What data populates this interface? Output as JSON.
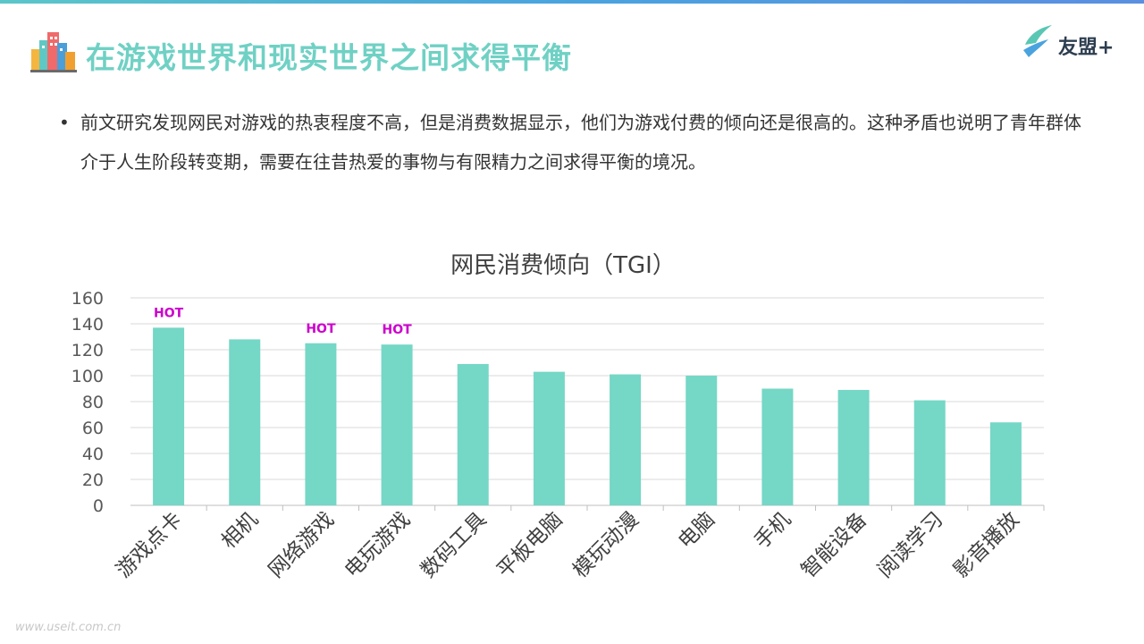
{
  "page": {
    "title": "在游戏世界和现实世界之间求得平衡",
    "bullet": "前文研究发现网民对游戏的热衷程度不高，但是消费数据显示，他们为游戏付费的倾向还是很高的。这种矛盾也说明了青年群体介于人生阶段转变期，需要在往昔热爱的事物与有限精力之间求得平衡的境况。",
    "watermark": "www.useit.com.cn"
  },
  "logo": {
    "text": "友盟+",
    "icon": "bird-icon"
  },
  "colors": {
    "accent": "#6fd1c4",
    "bar": "#75d7c6",
    "hot": "#cc00cc"
  },
  "chart_data": {
    "type": "bar",
    "title": "网民消费倾向（TGI）",
    "categories": [
      "游戏点卡",
      "相机",
      "网络游戏",
      "电玩游戏",
      "数码工具",
      "平板电脑",
      "模玩动漫",
      "电脑",
      "手机",
      "智能设备",
      "阅读学习",
      "影音播放"
    ],
    "values": [
      137,
      128,
      125,
      124,
      109,
      103,
      101,
      100,
      90,
      89,
      81,
      64
    ],
    "annotations": [
      "HOT",
      "",
      "HOT",
      "HOT",
      "",
      "",
      "",
      "",
      "",
      "",
      "",
      ""
    ],
    "yticks": [
      "0",
      "20",
      "40",
      "60",
      "80",
      "100",
      "120",
      "140",
      "160"
    ],
    "ylim": [
      0,
      160
    ],
    "grid": true,
    "legend": "none"
  }
}
